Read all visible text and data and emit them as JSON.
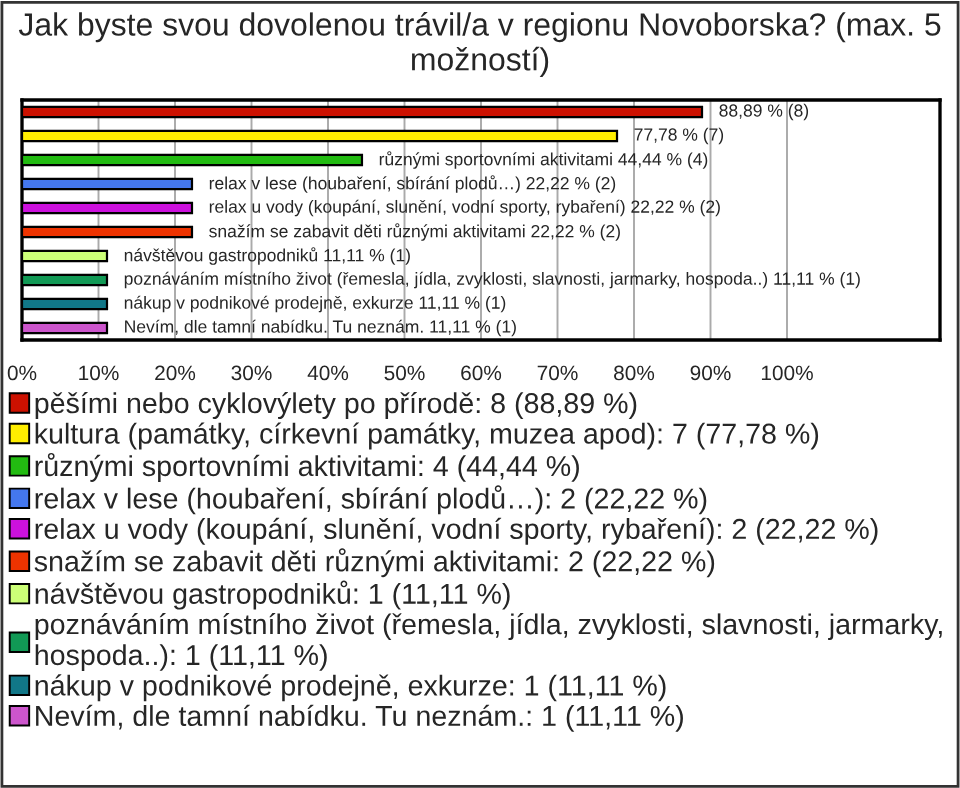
{
  "chart_data": {
    "type": "bar",
    "orientation": "horizontal",
    "title": "Jak byste svou dovolenou trávil/a v regionu Novoborska? (max. 5 možností)",
    "categories": [
      null,
      null,
      null,
      null,
      null,
      null,
      null,
      null,
      null,
      null
    ],
    "series": [
      {
        "name": "pěšími nebo cyklovýlety po přírodě: 8 (88,89 %)",
        "color": "#cc1100",
        "values": [
          88.89,
          null,
          null,
          null,
          null,
          null,
          null,
          null,
          null,
          null
        ],
        "value_labels": [
          "88,89 % (8)",
          null,
          null,
          null,
          null,
          null,
          null,
          null,
          null,
          null
        ]
      },
      {
        "name": "kultura (památky, církevní památky, muzea apod): 7 (77,78 %)",
        "color": "#ffee00",
        "values": [
          null,
          77.78,
          null,
          null,
          null,
          null,
          null,
          null,
          null,
          null
        ],
        "value_labels": [
          null,
          "77,78 % (7)",
          null,
          null,
          null,
          null,
          null,
          null,
          null,
          null
        ]
      },
      {
        "name": "různými sportovními aktivitami: 4 (44,44 %)",
        "color": "#22bb11",
        "values": [
          null,
          null,
          44.44,
          null,
          null,
          null,
          null,
          null,
          null,
          null
        ],
        "value_labels": [
          null,
          null,
          "různými sportovními aktivitami 44,44 % (4)",
          null,
          null,
          null,
          null,
          null,
          null,
          null
        ]
      },
      {
        "name": "relax v lese (houbaření, sbírání plodů…): 2 (22,22 %)",
        "color": "#4477ee",
        "values": [
          null,
          null,
          null,
          22.22,
          null,
          null,
          null,
          null,
          null,
          null
        ],
        "value_labels": [
          null,
          null,
          null,
          "relax v lese (houbaření, sbírání plodů…) 22,22 % (2)",
          null,
          null,
          null,
          null,
          null,
          null
        ]
      },
      {
        "name": "relax u vody (koupání, slunění, vodní sporty, rybaření): 2 (22,22 %)",
        "color": "#cc11dd",
        "values": [
          null,
          null,
          null,
          null,
          22.22,
          null,
          null,
          null,
          null,
          null
        ],
        "value_labels": [
          null,
          null,
          null,
          null,
          "relax u vody (koupání, slunění, vodní sporty, rybaření) 22,22 % (2)",
          null,
          null,
          null,
          null,
          null
        ]
      },
      {
        "name": "snažím se zabavit děti různými aktivitami: 2 (22,22 %)",
        "color": "#ee3300",
        "values": [
          null,
          null,
          null,
          null,
          null,
          22.22,
          null,
          null,
          null,
          null
        ],
        "value_labels": [
          null,
          null,
          null,
          null,
          null,
          "snažím se zabavit děti různými aktivitami 22,22 % (2)",
          null,
          null,
          null,
          null
        ]
      },
      {
        "name": "návštěvou gastropodniků: 1 (11,11 %)",
        "color": "#ccff77",
        "values": [
          null,
          null,
          null,
          null,
          null,
          null,
          11.11,
          null,
          null,
          null
        ],
        "value_labels": [
          null,
          null,
          null,
          null,
          null,
          null,
          "návštěvou gastropodniků 11,11 % (1)",
          null,
          null,
          null
        ]
      },
      {
        "name": "poznáváním místního život (řemesla, jídla, zvyklosti, slavnosti, jarmarky,\nhospoda..): 1 (11,11 %)",
        "color": "#119955",
        "values": [
          null,
          null,
          null,
          null,
          null,
          null,
          null,
          11.11,
          null,
          null
        ],
        "value_labels": [
          null,
          null,
          null,
          null,
          null,
          null,
          null,
          "poznáváním místního život (řemesla, jídla, zvyklosti, slavnosti, jarmarky, hospoda..) 11,11 % (1)",
          null,
          null
        ]
      },
      {
        "name": "nákup v podnikové prodejně, exkurze: 1 (11,11 %)",
        "color": "#117788",
        "values": [
          null,
          null,
          null,
          null,
          null,
          null,
          null,
          null,
          11.11,
          null
        ],
        "value_labels": [
          null,
          null,
          null,
          null,
          null,
          null,
          null,
          null,
          "nákup v podnikové prodejně, exkurze 11,11 % (1)",
          null
        ]
      },
      {
        "name": "Nevím, dle tamní nabídku. Tu neznám.: 1 (11,11 %)",
        "color": "#cc55cc",
        "values": [
          null,
          null,
          null,
          null,
          null,
          null,
          null,
          null,
          null,
          11.11
        ],
        "value_labels": [
          null,
          null,
          null,
          null,
          null,
          null,
          null,
          null,
          null,
          "Nevím, dle tamní nabídku. Tu neznám. 11,11 % (1)"
        ]
      }
    ],
    "xlim": [
      0,
      120
    ],
    "xticks": [
      {
        "value": 0,
        "label": "0%"
      },
      {
        "value": 10,
        "label": "10%"
      },
      {
        "value": 20,
        "label": "20%"
      },
      {
        "value": 30,
        "label": "30%"
      },
      {
        "value": 40,
        "label": "40%"
      },
      {
        "value": 50,
        "label": "50%"
      },
      {
        "value": 60,
        "label": "60%"
      },
      {
        "value": 70,
        "label": "70%"
      },
      {
        "value": 80,
        "label": "80%"
      },
      {
        "value": 90,
        "label": "90%"
      },
      {
        "value": 100,
        "label": "100%"
      }
    ],
    "grid": "x",
    "legend": "bottom"
  }
}
